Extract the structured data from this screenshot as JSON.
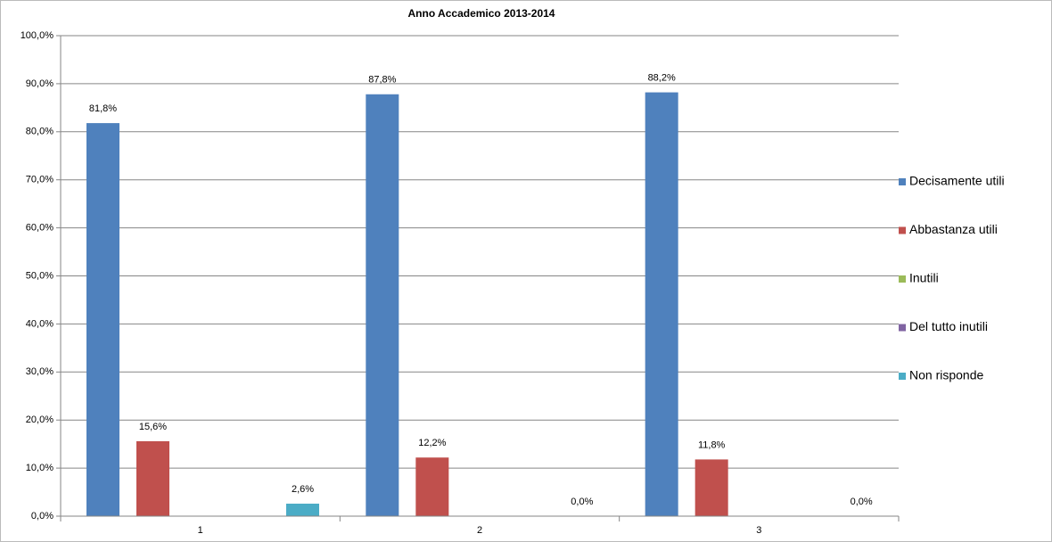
{
  "chart_data": {
    "type": "bar",
    "title": "Anno Accademico 2013-2014",
    "categories": [
      "1",
      "2",
      "3"
    ],
    "series": [
      {
        "name": "Decisamente utili",
        "color": "#4f81bd",
        "values": [
          81.8,
          87.8,
          88.2
        ],
        "value_labels": [
          "81,8%",
          "87,8%",
          "88,2%"
        ]
      },
      {
        "name": "Abbastanza utili",
        "color": "#c0504d",
        "values": [
          15.6,
          12.2,
          11.8
        ],
        "value_labels": [
          "15,6%",
          "12,2%",
          "11,8%"
        ]
      },
      {
        "name": "Inutili",
        "color": "#9bbb59",
        "values": [
          0,
          0,
          0
        ]
      },
      {
        "name": "Del tutto inutili",
        "color": "#8064a2",
        "values": [
          0,
          0,
          0
        ]
      },
      {
        "name": "Non risponde",
        "color": "#4bacc6",
        "values": [
          2.6,
          0,
          0
        ],
        "value_labels": [
          "2,6%",
          "0,0%",
          "0,0%"
        ]
      }
    ],
    "ylim": [
      0,
      100
    ],
    "yticks": [
      {
        "value": 0,
        "label": "0,0%"
      },
      {
        "value": 10,
        "label": "10,0%"
      },
      {
        "value": 20,
        "label": "20,0%"
      },
      {
        "value": 30,
        "label": "30,0%"
      },
      {
        "value": 40,
        "label": "40,0%"
      },
      {
        "value": 50,
        "label": "50,0%"
      },
      {
        "value": 60,
        "label": "60,0%"
      },
      {
        "value": 70,
        "label": "70,0%"
      },
      {
        "value": 80,
        "label": "80,0%"
      },
      {
        "value": 90,
        "label": "90,0%"
      },
      {
        "value": 100,
        "label": "100,0%"
      }
    ],
    "grid": true,
    "legend": "right"
  }
}
